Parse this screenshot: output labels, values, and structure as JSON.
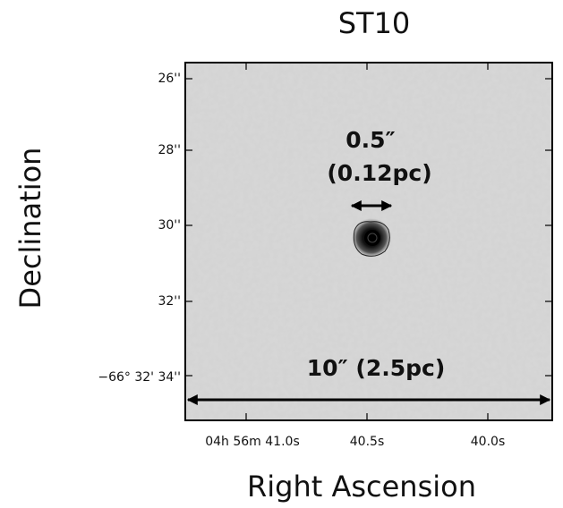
{
  "title": "ST10",
  "x_axis": {
    "label": "Right Ascension",
    "ticks": [
      "04h 56m 41.0s",
      "40.5s",
      "40.0s"
    ]
  },
  "y_axis": {
    "label": "Declination",
    "ticks": [
      "26''",
      "28''",
      "30''",
      "32''",
      "−66° 32' 34''"
    ]
  },
  "annotations": {
    "source_size": "0.5″",
    "source_size_pc": "(0.12pc)",
    "field_size": "10″ (2.5pc)"
  }
}
